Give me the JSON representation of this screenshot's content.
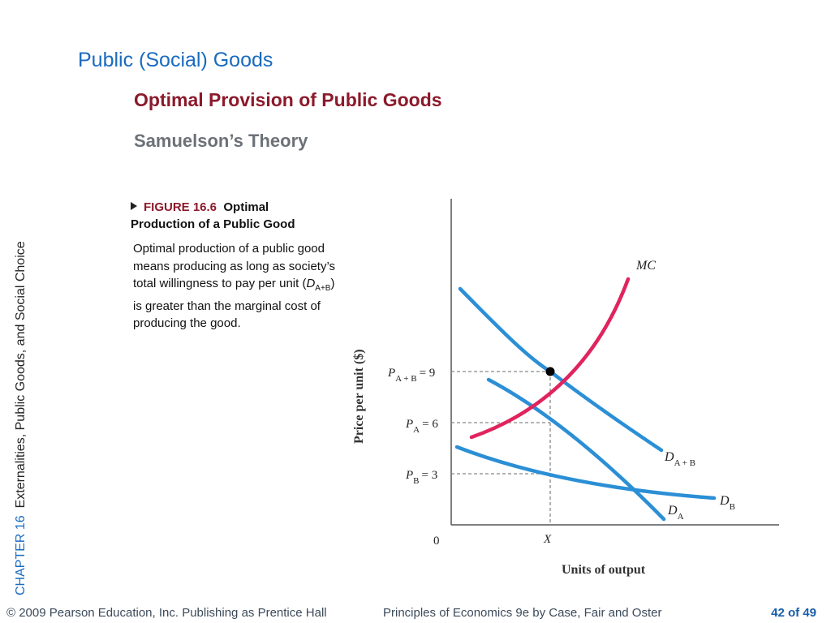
{
  "slide": {
    "title": "Public (Social) Goods",
    "subtitle": "Optimal Provision of Public Goods",
    "section": "Samuelson’s Theory"
  },
  "sidebar": {
    "chapter_label": "CHAPTER 16",
    "chapter_title": "Externalities, Public Goods, and Social Choice"
  },
  "figure": {
    "number": "FIGURE 16.6",
    "title_part1": "Optimal",
    "title_part2": "Production of a Public Good",
    "desc_before": "Optimal production of a public good means producing as long as society’s total willingness to pay per unit (",
    "desc_d": "D",
    "desc_sub": "A+B",
    "desc_after": ") is greater than the marginal cost of producing the good."
  },
  "footer": {
    "copyright": "© 2009 Pearson Education, Inc. Publishing as Prentice Hall",
    "book": "Principles of Economics 9e by Case, Fair and Oster",
    "page": "42 of 49"
  },
  "colors": {
    "title": "#1a6bbf",
    "subtitle": "#8b1a2b",
    "demand_curves": "#2b8fd6",
    "mc_curve": "#e0245e"
  },
  "chart_data": {
    "type": "line",
    "xlabel": "Units of output",
    "ylabel": "Price per unit ($)",
    "origin_label": "0",
    "x_marker": "X",
    "equilibrium": {
      "x": 1,
      "price": 9
    },
    "price_levels": [
      {
        "p": "P",
        "sub": "A + B",
        "eq": "= 9",
        "value": 9
      },
      {
        "p": "P",
        "sub": "A",
        "eq": "= 6",
        "value": 6
      },
      {
        "p": "P",
        "sub": "B",
        "eq": "= 3",
        "value": 3
      }
    ],
    "series": [
      {
        "name": "MC",
        "label": "MC",
        "label_sub": ""
      },
      {
        "name": "D_A+B",
        "label": "D",
        "label_sub": "A + B"
      },
      {
        "name": "D_A",
        "label": "D",
        "label_sub": "A"
      },
      {
        "name": "D_B",
        "label": "D",
        "label_sub": "B"
      }
    ]
  }
}
